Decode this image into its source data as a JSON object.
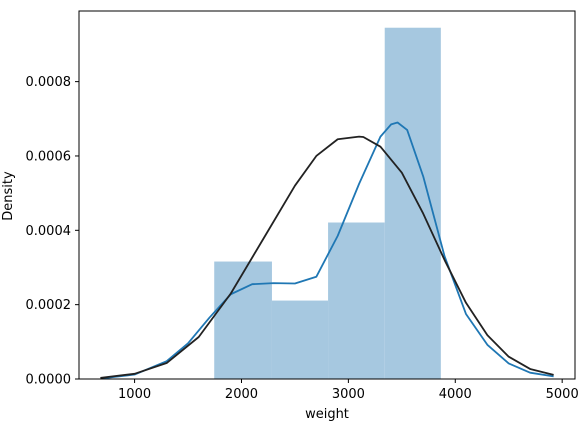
{
  "chart_data": {
    "type": "histogram",
    "title": "",
    "xlabel": "weight",
    "ylabel": "Density",
    "xlim": [
      480,
      5120
    ],
    "ylim": [
      0,
      0.00099
    ],
    "x_ticks": [
      1000,
      2000,
      3000,
      4000,
      5000
    ],
    "x_tick_labels": [
      "1000",
      "2000",
      "3000",
      "4000",
      "5000"
    ],
    "y_ticks": [
      0,
      0.0002,
      0.0004,
      0.0006,
      0.0008
    ],
    "y_tick_labels": [
      "0.0000",
      "0.0002",
      "0.0004",
      "0.0006",
      "0.0008"
    ],
    "grid": false,
    "colors": {
      "bars": "#a6c8e0",
      "kde": "#1f77b4",
      "fit": "#222222"
    },
    "bins": [
      {
        "x0": 1745,
        "x1": 2285,
        "density": 0.000316
      },
      {
        "x0": 2285,
        "x1": 2810,
        "density": 0.000211
      },
      {
        "x0": 2810,
        "x1": 3340,
        "density": 0.000421
      },
      {
        "x0": 3340,
        "x1": 3865,
        "density": 0.000945
      }
    ],
    "series": [
      {
        "type": "line",
        "x": [
          700,
          1000,
          1300,
          1500,
          1700,
          1900,
          2100,
          2300,
          2500,
          2700,
          2900,
          3100,
          3300,
          3400,
          3460,
          3550,
          3700,
          3900,
          4100,
          4300,
          4500,
          4700,
          4920
        ],
        "y": [
          2e-06,
          1.2e-05,
          4.8e-05,
          9.6e-05,
          0.000165,
          0.000228,
          0.000255,
          0.000258,
          0.000257,
          0.000275,
          0.000385,
          0.000525,
          0.000652,
          0.000685,
          0.00069,
          0.00067,
          0.000545,
          0.00033,
          0.000175,
          9.2e-05,
          4.2e-05,
          1.7e-05,
          7e-06
        ]
      },
      {
        "type": "line",
        "x": [
          680,
          1000,
          1300,
          1600,
          1900,
          2200,
          2500,
          2700,
          2900,
          3100,
          3140,
          3300,
          3500,
          3700,
          3900,
          4100,
          4300,
          4500,
          4700,
          4920
        ],
        "y": [
          3e-06,
          1.4e-05,
          4.3e-05,
          0.000113,
          0.00023,
          0.000375,
          0.00052,
          0.0006,
          0.000645,
          0.000652,
          0.000651,
          0.000625,
          0.000555,
          0.000445,
          0.00032,
          0.000205,
          0.000118,
          6e-05,
          2.7e-05,
          1.1e-05
        ]
      }
    ]
  }
}
